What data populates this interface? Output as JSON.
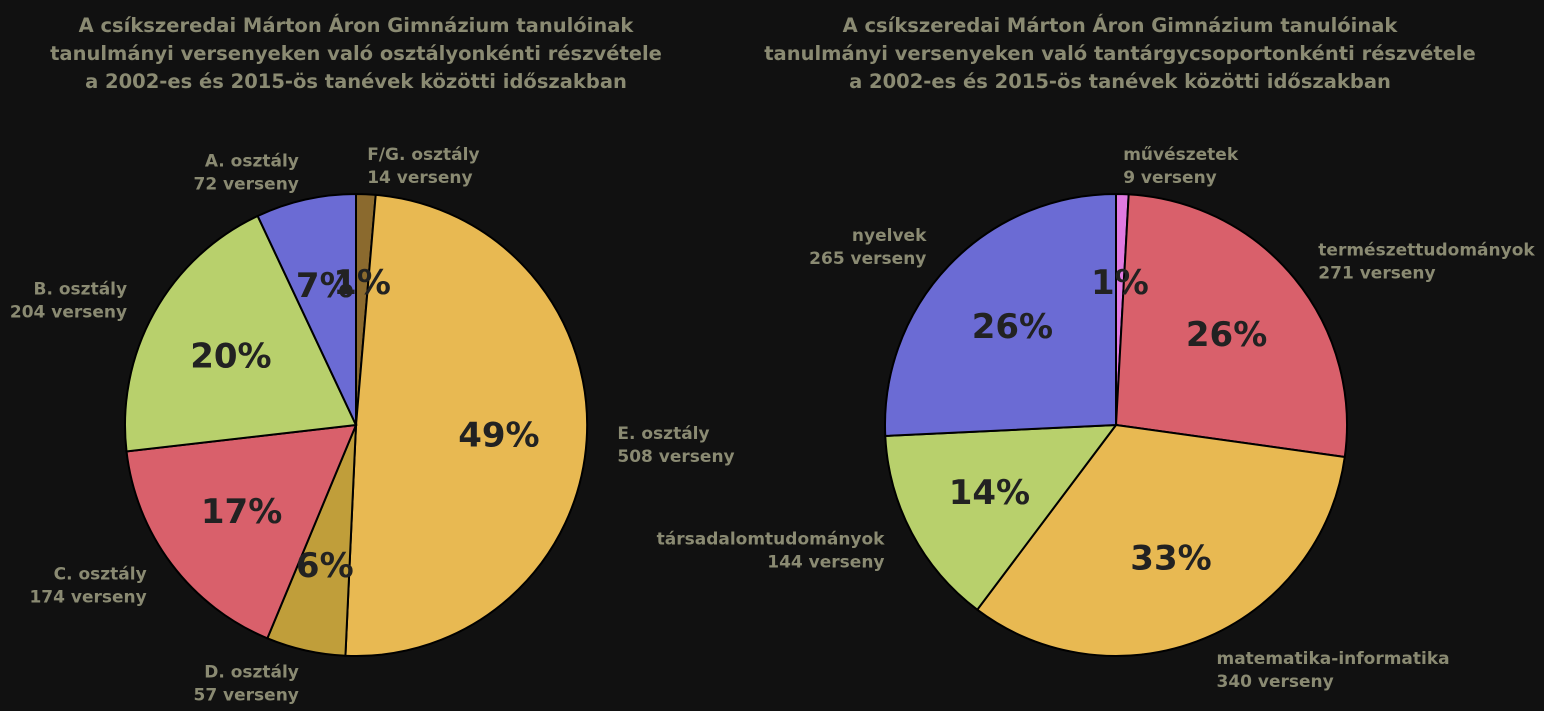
{
  "chart_data": [
    {
      "type": "pie",
      "title": [
        "A csíkszeredai Márton Áron Gimnázium tanulóinak",
        "tanulmányi versenyeken való osztályonkénti részvétele",
        "a 2002-es és 2015-ös tanévek közötti időszakban"
      ],
      "start_angle_deg": 90,
      "direction": "clockwise",
      "slices": [
        {
          "name": "F/G. osztály",
          "value": 14,
          "value_label": "14 verseny",
          "percent_label": "1%",
          "color": "#8b6a2e"
        },
        {
          "name": "E. osztály",
          "value": 508,
          "value_label": "508 verseny",
          "percent_label": "49%",
          "color": "#e8b952"
        },
        {
          "name": "D. osztály",
          "value": 57,
          "value_label": "57 verseny",
          "percent_label": "6%",
          "color": "#c09e3a"
        },
        {
          "name": "C. osztály",
          "value": 174,
          "value_label": "174 verseny",
          "percent_label": "17%",
          "color": "#d9606b"
        },
        {
          "name": "B. osztály",
          "value": 204,
          "value_label": "204 verseny",
          "percent_label": "20%",
          "color": "#b8d06c"
        },
        {
          "name": "A. osztály",
          "value": 72,
          "value_label": "72 verseny",
          "percent_label": "7%",
          "color": "#6b6bd4"
        }
      ]
    },
    {
      "type": "pie",
      "title": [
        "A csíkszeredai Márton Áron Gimnázium tanulóinak",
        "tanulmányi versenyeken való tantárgycsoportonkénti részvétele",
        "a 2002-es és 2015-ös tanévek közötti időszakban"
      ],
      "start_angle_deg": 90,
      "direction": "clockwise",
      "slices": [
        {
          "name": "művészetek",
          "value": 9,
          "value_label": "9 verseny",
          "percent_label": "1%",
          "color": "#e07ae0"
        },
        {
          "name": "természettudományok",
          "value": 271,
          "value_label": "271 verseny",
          "percent_label": "26%",
          "color": "#d9606b"
        },
        {
          "name": "matematika-informatika",
          "value": 340,
          "value_label": "340 verseny",
          "percent_label": "33%",
          "color": "#e8b952"
        },
        {
          "name": "társadalomtudományok",
          "value": 144,
          "value_label": "144 verseny",
          "percent_label": "14%",
          "color": "#b8d06c"
        },
        {
          "name": "nyelvek",
          "value": 265,
          "value_label": "265 verseny",
          "percent_label": "26%",
          "color": "#6b6bd4"
        }
      ]
    }
  ]
}
